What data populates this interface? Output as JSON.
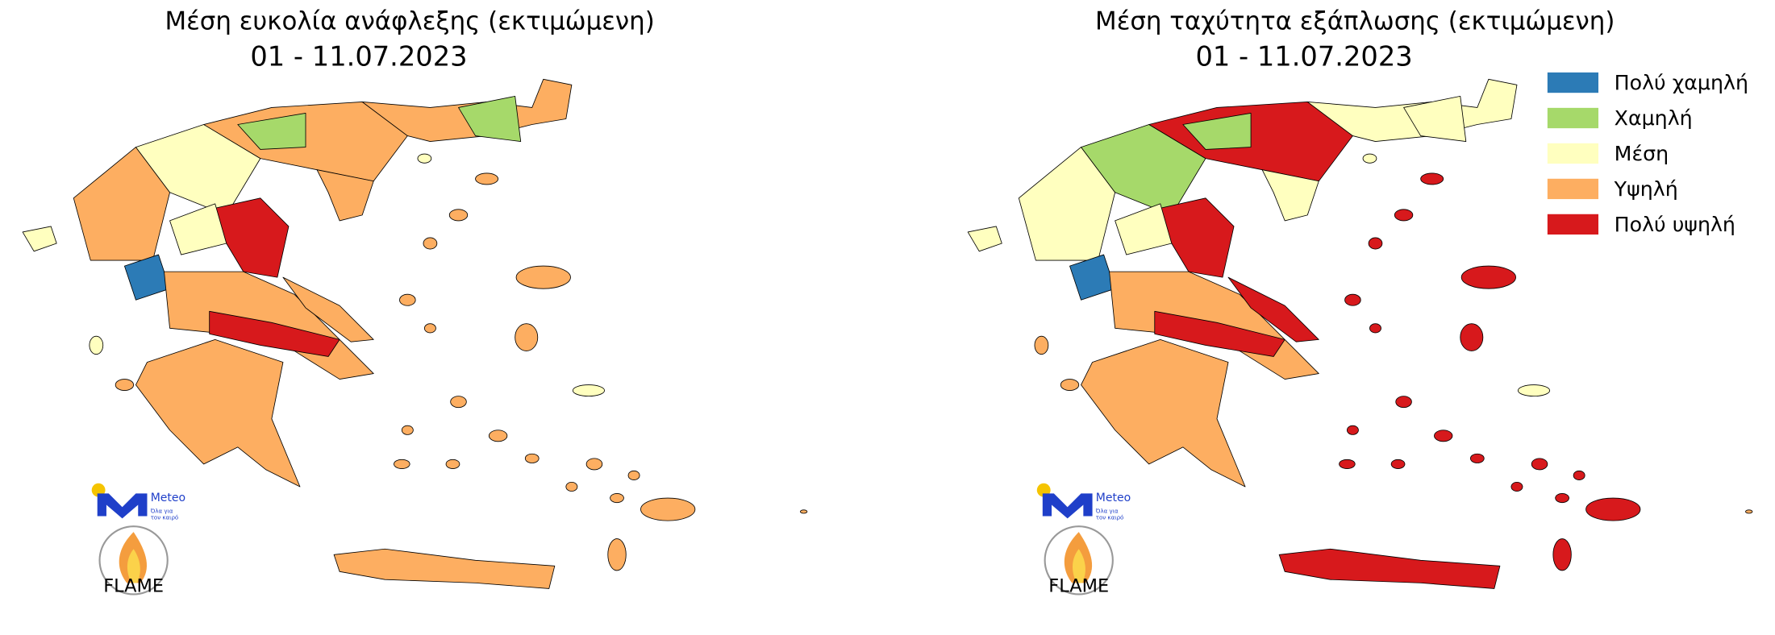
{
  "maps": [
    {
      "title": "Μέση ευκολία ανάφλεξης (εκτιμώμενη)",
      "date": "01 - 11.07.2023"
    },
    {
      "title": "Μέση ταχύτητα εξάπλωσης (εκτιμώμενη)",
      "date": "01 - 11.07.2023"
    }
  ],
  "legend": {
    "items": [
      {
        "label": "Πολύ χαμηλή",
        "color": "#2c7bb6"
      },
      {
        "label": "Χαμηλή",
        "color": "#a6d96a"
      },
      {
        "label": "Μέση",
        "color": "#ffffbf"
      },
      {
        "label": "Υψηλή",
        "color": "#fdae61"
      },
      {
        "label": "Πολύ υψηλή",
        "color": "#d7191c"
      }
    ]
  },
  "logos": {
    "meteo": "Meteo",
    "meteo_slogan_1": "Όλα για",
    "meteo_slogan_2": "τον καιρό",
    "flame": "FLAME"
  }
}
